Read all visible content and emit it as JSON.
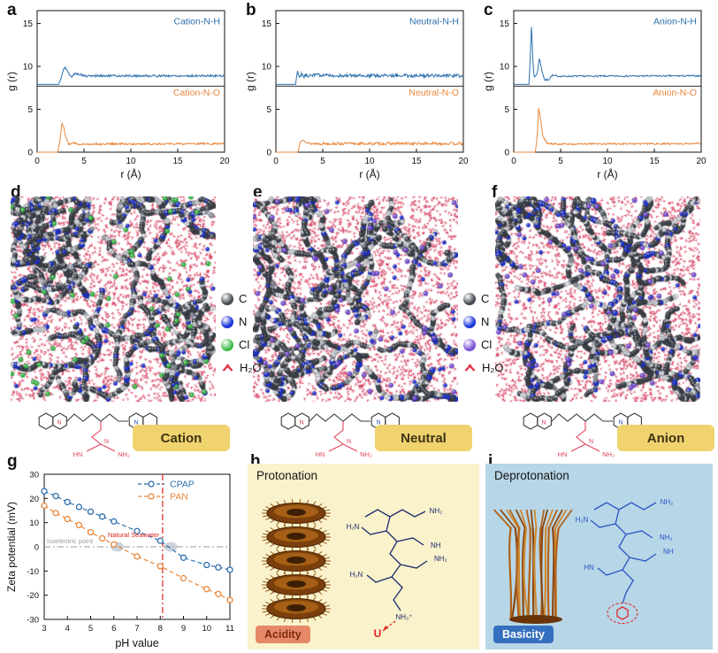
{
  "letters": {
    "a": "a",
    "b": "b",
    "c": "c",
    "d": "d",
    "e": "e",
    "f": "f",
    "g": "g",
    "h": "h",
    "i": "i"
  },
  "colors": {
    "blue": "#2c6fad",
    "orange": "#e8873c",
    "red_line": "#e02020",
    "gray_line": "#999999",
    "label_box_bg": "#f0d36f",
    "h_bg": "#f9f2cb",
    "i_bg": "#b7d6e7",
    "acidity_bg": "#e78969",
    "acidity_text": "#7c2a10",
    "basicity_bg": "#3470bd",
    "basicity_text": "#ffffff"
  },
  "chart_data": [
    {
      "id": "rdf_cation",
      "type": "line",
      "panel": "a",
      "xlabel": "r (Å)",
      "ylabel": "g (r)",
      "xlim": [
        0,
        20
      ],
      "ylim": [
        0,
        16.5
      ],
      "xticks": [
        0,
        5,
        10,
        15,
        20
      ],
      "yticks": [
        0,
        5,
        10,
        15
      ],
      "divider_y": 7.7,
      "legend_position": "inside-right",
      "series": [
        {
          "name": "Cation-N-H",
          "color": "#2c6fad",
          "offset": 7.9,
          "noise": 0.13,
          "keypoints": [
            [
              0,
              0
            ],
            [
              2.3,
              0
            ],
            [
              2.55,
              0.7
            ],
            [
              2.8,
              1.7
            ],
            [
              3.0,
              2.0
            ],
            [
              3.3,
              1.4
            ],
            [
              3.6,
              0.85
            ],
            [
              4.1,
              1.3
            ],
            [
              4.6,
              1.15
            ],
            [
              5.2,
              0.95
            ],
            [
              6,
              1
            ],
            [
              20,
              1
            ]
          ]
        },
        {
          "name": "Cation-N-O",
          "color": "#e8873c",
          "offset": 0,
          "noise": 0.12,
          "keypoints": [
            [
              0,
              0
            ],
            [
              2.2,
              0
            ],
            [
              2.45,
              1.5
            ],
            [
              2.65,
              3.5
            ],
            [
              2.85,
              2.8
            ],
            [
              3.1,
              1.6
            ],
            [
              3.4,
              0.9
            ],
            [
              3.9,
              1.05
            ],
            [
              4.5,
              0.95
            ],
            [
              20,
              1
            ]
          ]
        }
      ]
    },
    {
      "id": "rdf_neutral",
      "type": "line",
      "panel": "b",
      "xlabel": "r (Å)",
      "ylabel": "g (r)",
      "xlim": [
        0,
        20
      ],
      "ylim": [
        0,
        16.5
      ],
      "xticks": [
        0,
        5,
        10,
        15,
        20
      ],
      "yticks": [
        0,
        5,
        10,
        15
      ],
      "divider_y": 7.7,
      "legend_position": "inside-right",
      "series": [
        {
          "name": "Neutral-N-H",
          "color": "#2c6fad",
          "offset": 7.9,
          "noise": 0.2,
          "keypoints": [
            [
              0,
              0
            ],
            [
              2.1,
              0
            ],
            [
              2.3,
              1.6
            ],
            [
              2.5,
              0.8
            ],
            [
              2.75,
              1.3
            ],
            [
              3.0,
              0.95
            ],
            [
              3.5,
              1.05
            ],
            [
              20,
              1
            ]
          ]
        },
        {
          "name": "Neutral-N-O",
          "color": "#e8873c",
          "offset": 0,
          "noise": 0.16,
          "keypoints": [
            [
              0,
              0
            ],
            [
              2.35,
              0
            ],
            [
              2.6,
              1.2
            ],
            [
              3.0,
              1.45
            ],
            [
              3.5,
              1.0
            ],
            [
              20,
              1
            ]
          ]
        }
      ]
    },
    {
      "id": "rdf_anion",
      "type": "line",
      "panel": "c",
      "xlabel": "r (Å)",
      "ylabel": "g (r)",
      "xlim": [
        0,
        20
      ],
      "ylim": [
        0,
        16.5
      ],
      "xticks": [
        0,
        5,
        10,
        15,
        20
      ],
      "yticks": [
        0,
        5,
        10,
        15
      ],
      "divider_y": 7.7,
      "legend_position": "inside-right",
      "series": [
        {
          "name": "Anion-N-H",
          "color": "#2c6fad",
          "offset": 7.9,
          "noise": 0.09,
          "keypoints": [
            [
              0,
              0
            ],
            [
              1.62,
              0
            ],
            [
              1.78,
              3.5
            ],
            [
              1.9,
              7.0
            ],
            [
              2.05,
              2.5
            ],
            [
              2.2,
              0.7
            ],
            [
              2.5,
              1.3
            ],
            [
              2.75,
              3.1
            ],
            [
              3.0,
              1.6
            ],
            [
              3.3,
              0.5
            ],
            [
              3.7,
              0.55
            ],
            [
              4.1,
              1.05
            ],
            [
              4.8,
              0.95
            ],
            [
              20,
              1
            ]
          ]
        },
        {
          "name": "Anion-N-O",
          "color": "#e8873c",
          "offset": 0,
          "noise": 0.1,
          "keypoints": [
            [
              0,
              0
            ],
            [
              2.3,
              0
            ],
            [
              2.5,
              1.8
            ],
            [
              2.65,
              5.2
            ],
            [
              2.85,
              4.0
            ],
            [
              3.1,
              1.9
            ],
            [
              3.5,
              1.1
            ],
            [
              4.2,
              0.95
            ],
            [
              20,
              1
            ]
          ]
        }
      ]
    },
    {
      "id": "zeta_potential",
      "type": "scatter",
      "panel": "g",
      "xlabel": "pH value",
      "ylabel": "Zeta potential (mV)",
      "xlim": [
        3,
        11
      ],
      "ylim": [
        -30,
        30
      ],
      "xticks": [
        3,
        4,
        5,
        6,
        7,
        8,
        9,
        10,
        11
      ],
      "yticks": [
        -30,
        -20,
        -10,
        0,
        10,
        20,
        30
      ],
      "legend_position": "top-right",
      "series": [
        {
          "name": "CPAP",
          "color": "#2c6fad",
          "points": [
            [
              3,
              23
            ],
            [
              3.5,
              21
            ],
            [
              4,
              18.5
            ],
            [
              4.5,
              16.5
            ],
            [
              5,
              14.5
            ],
            [
              5.5,
              12.5
            ],
            [
              6,
              10.5
            ],
            [
              7,
              6.5
            ],
            [
              8,
              2.5
            ],
            [
              9,
              -4.5
            ],
            [
              10,
              -7.5
            ],
            [
              10.5,
              -8.5
            ],
            [
              11,
              -9.5
            ]
          ]
        },
        {
          "name": "PAN",
          "color": "#e8873c",
          "points": [
            [
              3,
              17
            ],
            [
              3.5,
              14
            ],
            [
              4,
              11.5
            ],
            [
              4.5,
              9
            ],
            [
              5,
              6
            ],
            [
              5.5,
              3.5
            ],
            [
              6,
              1
            ],
            [
              7,
              -4
            ],
            [
              8,
              -8
            ],
            [
              9,
              -13
            ],
            [
              10,
              -17.5
            ],
            [
              10.5,
              -19.5
            ],
            [
              11,
              -22
            ]
          ]
        }
      ],
      "annotations": {
        "vline": {
          "x": 8.1,
          "label": "Natural Seawater",
          "color": "#e02020"
        },
        "hline": {
          "y": 0,
          "label": "Isoelectric point",
          "color": "#999999"
        },
        "crossing_highlights": [
          [
            6.15,
            0
          ],
          [
            8.45,
            0
          ]
        ]
      }
    }
  ],
  "md_panels": [
    {
      "panel": "d",
      "label": "Cation",
      "legend": [
        {
          "label": "C",
          "color": "#474c52"
        },
        {
          "label": "N",
          "color": "#1b35d8"
        },
        {
          "label": "Cl",
          "color": "#3fbb4a"
        },
        {
          "label": "H₂O",
          "color": "#e0344a",
          "icon": "water"
        }
      ],
      "render": {
        "seed": 11,
        "water": 2600,
        "chains": 30,
        "cl_color": "#3fbb4a",
        "cl_count": 60,
        "n_count": 45
      }
    },
    {
      "panel": "e",
      "label": "Neutral",
      "legend": [
        {
          "label": "C",
          "color": "#474c52"
        },
        {
          "label": "N",
          "color": "#1b35d8"
        },
        {
          "label": "Cl",
          "color": "#7b52d6"
        },
        {
          "label": "H₂O",
          "color": "#e0344a",
          "icon": "water"
        }
      ],
      "render": {
        "seed": 22,
        "water": 2600,
        "chains": 28,
        "cl_color": "#7b52d6",
        "cl_count": 55,
        "n_count": 45
      }
    },
    {
      "panel": "f",
      "label": "Anion",
      "legend": [],
      "render": {
        "seed": 33,
        "water": 2600,
        "chains": 29,
        "cl_color": "#7b52d6",
        "cl_count": 55,
        "n_count": 45
      }
    }
  ],
  "structures": [
    {
      "ring_label": "N",
      "center_label": "N",
      "tail_labels": [
        "HN",
        "NH₂"
      ]
    },
    {
      "ring_label": "N",
      "center_label": "N",
      "tail_labels": [
        "HN",
        "NH₂"
      ]
    },
    {
      "ring_label": "N",
      "center_label": "N",
      "tail_labels": [
        "HN",
        "NH₂"
      ]
    }
  ],
  "panel_h": {
    "title": "Protonation",
    "badge": "Acidity",
    "chain_labels": [
      "NH₂",
      "NH",
      "NH₂",
      "H₂N",
      "H₂N",
      "NH₃⁺"
    ],
    "target_label": "U"
  },
  "panel_i": {
    "title": "Deprotonation",
    "badge": "Basicity",
    "chain_labels": [
      "NH₂",
      "NH₂",
      "NH",
      "H₂N",
      "HN"
    ]
  }
}
